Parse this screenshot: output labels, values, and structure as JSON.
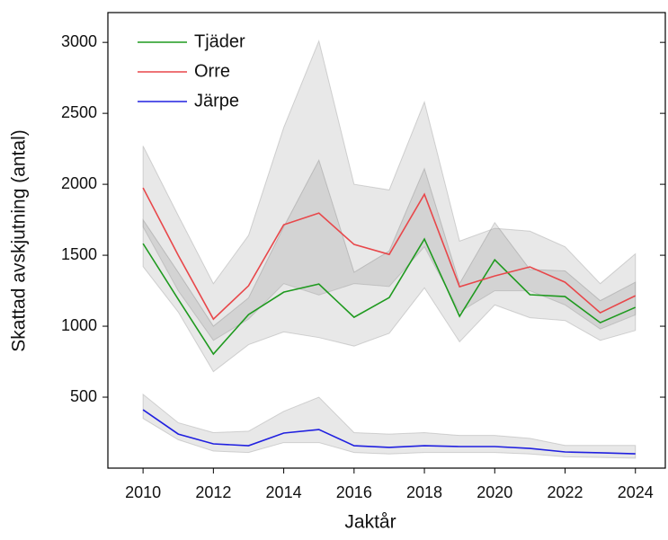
{
  "chart_data": {
    "type": "line",
    "x_label": "Jaktår",
    "y_label": "Skattad avskjutning (antal)",
    "x": [
      2010,
      2011,
      2012,
      2013,
      2014,
      2015,
      2016,
      2017,
      2018,
      2019,
      2020,
      2021,
      2022,
      2023,
      2024
    ],
    "xlim": [
      2009,
      2024.85
    ],
    "xticks": [
      2010,
      2012,
      2014,
      2016,
      2018,
      2020,
      2022,
      2024
    ],
    "ylim": [
      0,
      3210
    ],
    "yticks": [
      500,
      1000,
      1500,
      2000,
      2500,
      3000
    ],
    "legend": "upper left",
    "band_color": "#000000",
    "series": [
      {
        "name": "Tjäder",
        "color": "#1f9a1f",
        "values": [
          1582,
          1190,
          804,
          1082,
          1240,
          1297,
          1063,
          1202,
          1614,
          1070,
          1468,
          1222,
          1209,
          1025,
          1133
        ],
        "lower": [
          1420,
          1100,
          680,
          870,
          960,
          920,
          860,
          950,
          1270,
          890,
          1150,
          1060,
          1040,
          900,
          970
        ],
        "upper": [
          1750,
          1380,
          1000,
          1200,
          1700,
          2170,
          1380,
          1530,
          2110,
          1300,
          1730,
          1400,
          1390,
          1180,
          1310
        ]
      },
      {
        "name": "Orre",
        "color": "#e8474a",
        "values": [
          1975,
          1500,
          1050,
          1285,
          1715,
          1797,
          1576,
          1506,
          1930,
          1278,
          1354,
          1418,
          1310,
          1095,
          1215
        ],
        "lower": [
          1700,
          1250,
          900,
          1050,
          1300,
          1220,
          1300,
          1280,
          1560,
          1100,
          1250,
          1250,
          1150,
          980,
          1080
        ],
        "upper": [
          2270,
          1780,
          1300,
          1640,
          2400,
          3010,
          2000,
          1960,
          2580,
          1600,
          1690,
          1670,
          1560,
          1300,
          1510
        ]
      },
      {
        "name": "Järpe",
        "color": "#2020e0",
        "values": [
          411,
          240,
          171,
          158,
          247,
          272,
          158,
          146,
          158,
          152,
          152,
          139,
          114,
          108,
          101
        ],
        "lower": [
          350,
          200,
          120,
          110,
          180,
          180,
          110,
          100,
          110,
          110,
          110,
          100,
          80,
          75,
          70
        ],
        "upper": [
          520,
          320,
          250,
          260,
          400,
          500,
          250,
          240,
          250,
          230,
          230,
          210,
          160,
          160,
          160
        ]
      }
    ]
  }
}
